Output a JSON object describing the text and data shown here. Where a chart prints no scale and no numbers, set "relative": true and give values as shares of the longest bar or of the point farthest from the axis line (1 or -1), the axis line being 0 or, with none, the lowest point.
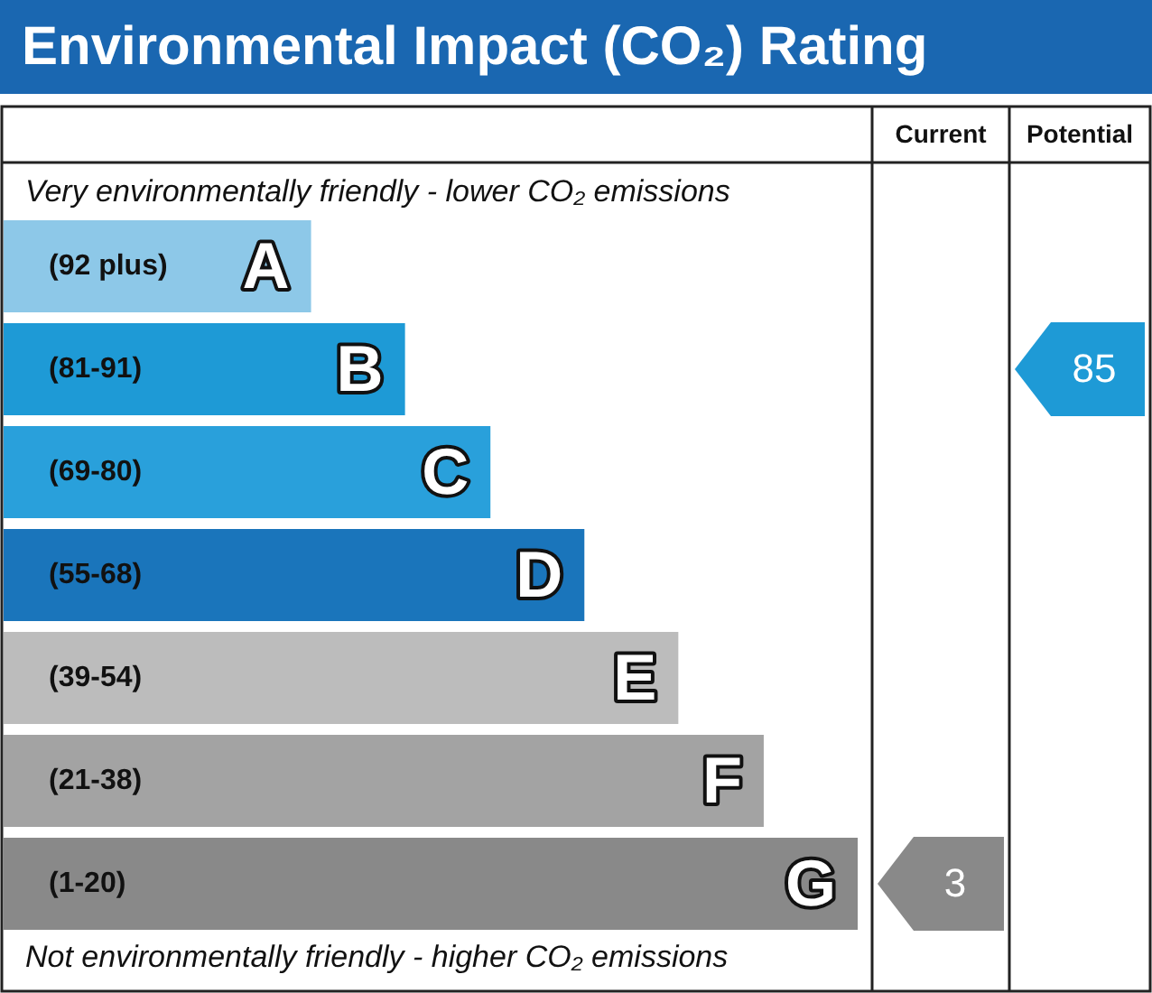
{
  "chart_data": {
    "type": "bar",
    "orientation": "horizontal",
    "relative": true,
    "title": "Environmental Impact (CO₂) Rating",
    "categories": [
      "(92 plus)",
      "(81-91)",
      "(69-80)",
      "(55-68)",
      "(39-54)",
      "(21-38)",
      "(1-20)"
    ],
    "values": [
      0.36,
      0.47,
      0.57,
      0.68,
      0.79,
      0.89,
      1
    ],
    "colors": [
      "#8dc8e8",
      "#1e9ad6",
      "#29a0db",
      "#1a75bb",
      "#bcbcbc",
      "#a3a3a3",
      "#898989"
    ],
    "annotations": [
      "Very environmentally friendly - lower CO₂ emissions",
      "Not environmentally friendly - higher CO₂ emissions",
      "Current",
      "Potential",
      "A",
      "B",
      "C",
      "D",
      "E",
      "F",
      "G",
      "3",
      "85"
    ],
    "legend": false
  }
}
